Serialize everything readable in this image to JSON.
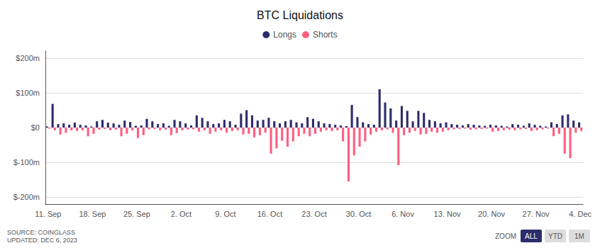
{
  "chart_data": {
    "type": "bar",
    "title": "BTC Liquidations",
    "categories": [
      "11. Sep",
      null,
      null,
      null,
      null,
      null,
      null,
      null,
      "18. Sep",
      null,
      null,
      null,
      null,
      null,
      null,
      null,
      "25. Sep",
      null,
      null,
      null,
      null,
      null,
      null,
      null,
      "2. Oct",
      null,
      null,
      null,
      null,
      null,
      null,
      null,
      "9. Oct",
      null,
      null,
      null,
      null,
      null,
      null,
      null,
      "16. Oct",
      null,
      null,
      null,
      null,
      null,
      null,
      null,
      "23. Oct",
      null,
      null,
      null,
      null,
      null,
      null,
      null,
      "30. Oct",
      null,
      null,
      null,
      null,
      null,
      null,
      null,
      "6. Nov",
      null,
      null,
      null,
      null,
      null,
      null,
      null,
      "13. Nov",
      null,
      null,
      null,
      null,
      null,
      null,
      null,
      "20. Nov",
      null,
      null,
      null,
      null,
      null,
      null,
      null,
      "27. Nov",
      null,
      null,
      null,
      null,
      null,
      null,
      null,
      "4. Dec"
    ],
    "series": [
      {
        "name": "Longs",
        "color": "#2d2d6b",
        "values": [
          3,
          68,
          10,
          12,
          8,
          14,
          8,
          6,
          3,
          18,
          22,
          14,
          12,
          8,
          20,
          16,
          5,
          6,
          25,
          18,
          10,
          12,
          5,
          22,
          18,
          12,
          6,
          35,
          28,
          18,
          10,
          12,
          22,
          18,
          8,
          40,
          50,
          35,
          20,
          22,
          28,
          18,
          12,
          18,
          22,
          15,
          12,
          30,
          25,
          18,
          12,
          10,
          8,
          6,
          4,
          65,
          30,
          15,
          10,
          8,
          110,
          72,
          55,
          20,
          62,
          48,
          18,
          48,
          42,
          22,
          18,
          12,
          15,
          10,
          8,
          6,
          10,
          8,
          6,
          5,
          8,
          6,
          5,
          3,
          10,
          8,
          5,
          12,
          8,
          5,
          3,
          15,
          10,
          35,
          38,
          20,
          15
        ]
      },
      {
        "name": "Shorts",
        "color": "#ff5f80",
        "values": [
          -3,
          -8,
          -20,
          -15,
          -8,
          -10,
          -8,
          -25,
          -18,
          -6,
          -4,
          -8,
          -6,
          -25,
          -18,
          -8,
          -30,
          -22,
          -5,
          -4,
          -8,
          -6,
          -22,
          -16,
          -8,
          -6,
          -5,
          -12,
          -8,
          -18,
          -12,
          -8,
          -15,
          -10,
          -8,
          -20,
          -18,
          -28,
          -22,
          -15,
          -75,
          -60,
          -38,
          -55,
          -40,
          -25,
          -18,
          -25,
          -18,
          -12,
          -8,
          -10,
          -8,
          -40,
          -155,
          -80,
          -55,
          -40,
          -20,
          -12,
          -8,
          -5,
          -15,
          -108,
          -22,
          -15,
          -10,
          -20,
          -18,
          -12,
          -15,
          -12,
          -8,
          -5,
          -4,
          -3,
          -6,
          -5,
          -4,
          -3,
          -12,
          -10,
          -8,
          -6,
          -8,
          -5,
          -4,
          -10,
          -8,
          -5,
          -3,
          -25,
          -18,
          -75,
          -88,
          -15,
          -10
        ]
      }
    ],
    "ylim": [
      -220,
      220
    ],
    "yticks": [
      {
        "value": -200,
        "label": "$-200m"
      },
      {
        "value": -100,
        "label": "$-100m"
      },
      {
        "value": 0,
        "label": "$0"
      },
      {
        "value": 100,
        "label": "$100m"
      },
      {
        "value": 200,
        "label": "$200m"
      }
    ],
    "grid": true,
    "legend": "top",
    "annotations": [
      "SOURCE: COINGLASS\nUPDATED: DEC 6, 2023",
      "ZOOM",
      "ALL",
      "YTD",
      "1M"
    ]
  }
}
